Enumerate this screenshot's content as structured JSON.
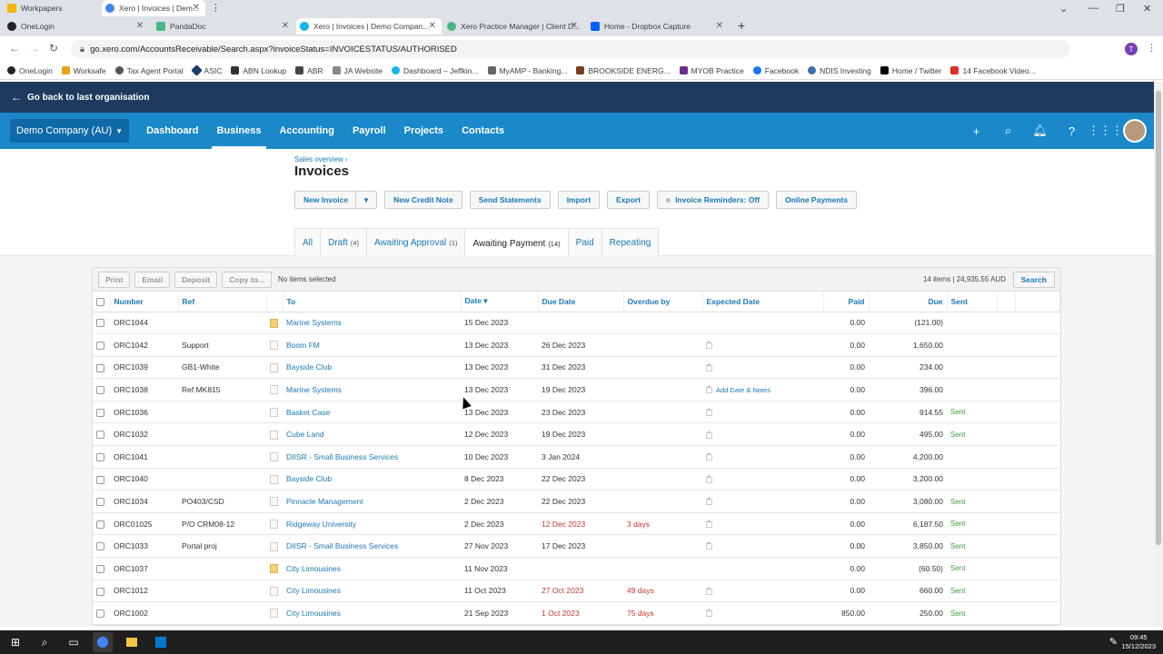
{
  "browser": {
    "tabs": [
      {
        "title": "Workpapers",
        "color": "#f4b400"
      },
      {
        "title": "Xero | Invoices | Dem...",
        "color": "#4285f4"
      },
      {
        "title": "OneLogin",
        "color": "#222222"
      },
      {
        "title": "PandaDoc",
        "color": "#47b881"
      },
      {
        "title": "Xero | Invoices | Demo Compan...",
        "color": "#13b5ea"
      },
      {
        "title": "Xero Practice Manager | Client D...",
        "color": "#13b5ea"
      },
      {
        "title": "Home - Dropbox Capture",
        "color": "#0061fe"
      }
    ],
    "url": "go.xero.com/AccountsReceivable/Search.aspx?invoiceStatus=INVOICESTATUS/AUTHORISED",
    "bookmarks": [
      "OneLogin",
      "Worksafe",
      "Tax Agent Portal",
      "ASIC",
      "ABN Lookup",
      "ABR",
      "JA Website",
      "Dashboard – Jeffkin...",
      "MyAMP - Banking...",
      "BROOKSIDE ENERG...",
      "MYOB Practice",
      "Facebook",
      "NDIS Investing",
      "Home / Twitter",
      "14 Facebook Video..."
    ]
  },
  "xero": {
    "back_label": "Go back to last organisation",
    "org": "Demo Company (AU)",
    "nav": [
      "Dashboard",
      "Business",
      "Accounting",
      "Payroll",
      "Projects",
      "Contacts"
    ],
    "breadcrumb": "Sales overview ›",
    "title": "Invoices",
    "actions": {
      "new_invoice": "New Invoice",
      "new_credit_note": "New Credit Note",
      "send_statements": "Send Statements",
      "import": "Import",
      "export": "Export",
      "reminders": "Invoice Reminders: Off",
      "online_payments": "Online Payments"
    },
    "tabs": [
      {
        "label": "All",
        "count": ""
      },
      {
        "label": "Draft",
        "count": "(4)"
      },
      {
        "label": "Awaiting Approval",
        "count": "(1)"
      },
      {
        "label": "Awaiting Payment",
        "count": "(14)"
      },
      {
        "label": "Paid",
        "count": ""
      },
      {
        "label": "Repeating",
        "count": ""
      }
    ],
    "grid": {
      "buttons": [
        "Print",
        "Email",
        "Deposit",
        "Copy to..."
      ],
      "selected": "No items selected",
      "summary": "14 items  |  24,935.55  AUD",
      "search": "Search",
      "headers": [
        "Number",
        "Ref",
        "To",
        "Date ▾",
        "Due Date",
        "Overdue by",
        "Expected Date",
        "Paid",
        "Due",
        "Sent"
      ],
      "add_note": "Add Date & Notes",
      "rows": [
        {
          "number": "ORC1044",
          "ref": "",
          "to": "Marine Systems",
          "date": "15 Dec 2023",
          "due_date": "",
          "overdue": "",
          "paid": "0.00",
          "due": "(121.00)",
          "sent": "",
          "credit": true
        },
        {
          "number": "ORC1042",
          "ref": "Support",
          "to": "Boom FM",
          "date": "13 Dec 2023",
          "due_date": "26 Dec 2023",
          "overdue": "",
          "paid": "0.00",
          "due": "1,650.00",
          "sent": "",
          "credit": false
        },
        {
          "number": "ORC1039",
          "ref": "GB1-White",
          "to": "Bayside Club",
          "date": "13 Dec 2023",
          "due_date": "31 Dec 2023",
          "overdue": "",
          "paid": "0.00",
          "due": "234.00",
          "sent": "",
          "credit": false
        },
        {
          "number": "ORC1038",
          "ref": "Ref MK815",
          "to": "Marine Systems",
          "date": "13 Dec 2023",
          "due_date": "19 Dec 2023",
          "overdue": "",
          "paid": "0.00",
          "due": "396.00",
          "sent": "",
          "credit": false
        },
        {
          "number": "ORC1036",
          "ref": "",
          "to": "Basket Case",
          "date": "13 Dec 2023",
          "due_date": "23 Dec 2023",
          "overdue": "",
          "paid": "0.00",
          "due": "914.55",
          "sent": "Sent",
          "credit": false
        },
        {
          "number": "ORC1032",
          "ref": "",
          "to": "Cube Land",
          "date": "12 Dec 2023",
          "due_date": "19 Dec 2023",
          "overdue": "",
          "paid": "0.00",
          "due": "495.00",
          "sent": "Sent",
          "credit": false
        },
        {
          "number": "ORC1041",
          "ref": "",
          "to": "DIISR - Small Business Services",
          "date": "10 Dec 2023",
          "due_date": "3 Jan 2024",
          "overdue": "",
          "paid": "0.00",
          "due": "4,200.00",
          "sent": "",
          "credit": false
        },
        {
          "number": "ORC1040",
          "ref": "",
          "to": "Bayside Club",
          "date": "8 Dec 2023",
          "due_date": "22 Dec 2023",
          "overdue": "",
          "paid": "0.00",
          "due": "3,200.00",
          "sent": "",
          "credit": false
        },
        {
          "number": "ORC1034",
          "ref": "PO403/CSD",
          "to": "Pinnacle Management",
          "date": "2 Dec 2023",
          "due_date": "22 Dec 2023",
          "overdue": "",
          "paid": "0.00",
          "due": "3,080.00",
          "sent": "Sent",
          "credit": false
        },
        {
          "number": "ORC01025",
          "ref": "P/O CRM08-12",
          "to": "Ridgeway University",
          "date": "2 Dec 2023",
          "due_date": "12 Dec 2023",
          "overdue": "3 days",
          "paid": "0.00",
          "due": "6,187.50",
          "sent": "Sent",
          "credit": false
        },
        {
          "number": "ORC1033",
          "ref": "Portal proj",
          "to": "DIISR - Small Business Services",
          "date": "27 Nov 2023",
          "due_date": "17 Dec 2023",
          "overdue": "",
          "paid": "0.00",
          "due": "3,850.00",
          "sent": "Sent",
          "credit": false
        },
        {
          "number": "ORC1037",
          "ref": "",
          "to": "City Limousines",
          "date": "11 Nov 2023",
          "due_date": "",
          "overdue": "",
          "paid": "0.00",
          "due": "(60.50)",
          "sent": "Sent",
          "credit": true
        },
        {
          "number": "ORC1012",
          "ref": "",
          "to": "City Limousines",
          "date": "11 Oct 2023",
          "due_date": "27 Oct 2023",
          "overdue": "49 days",
          "paid": "0.00",
          "due": "660.00",
          "sent": "Sent",
          "credit": false
        },
        {
          "number": "ORC1002",
          "ref": "",
          "to": "City Limousines",
          "date": "21 Sep 2023",
          "due_date": "1 Oct 2023",
          "overdue": "75 days",
          "paid": "850.00",
          "due": "250.00",
          "sent": "Sent",
          "credit": false
        }
      ]
    }
  },
  "taskbar": {
    "time": "09:45",
    "date": "15/12/2023"
  }
}
